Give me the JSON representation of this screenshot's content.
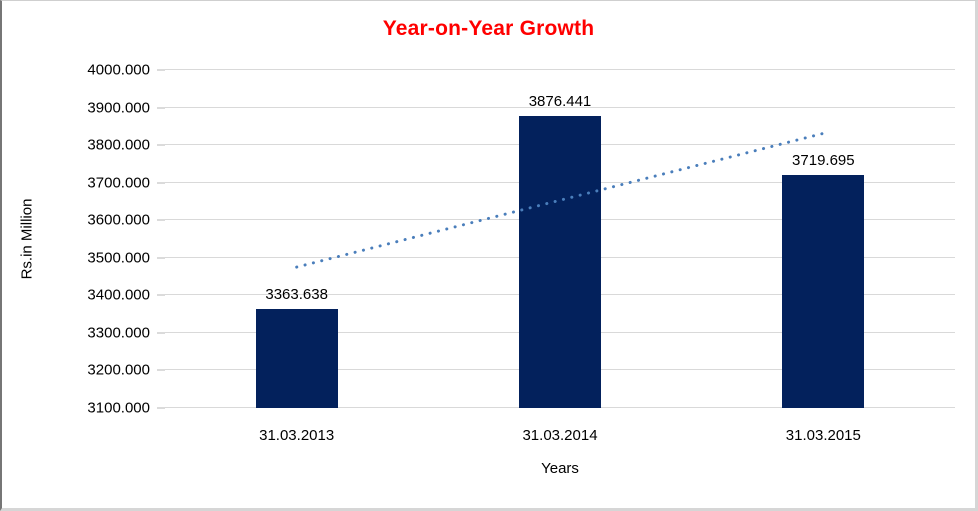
{
  "chart_data": {
    "type": "bar",
    "title": "Year-on-Year Growth",
    "xlabel": "Years",
    "ylabel": "Rs.in Million",
    "categories": [
      "31.03.2013",
      "31.03.2014",
      "31.03.2015"
    ],
    "values": [
      3363.638,
      3876.441,
      3719.695
    ],
    "value_labels": [
      "3363.638",
      "3876.441",
      "3719.695"
    ],
    "ylim": [
      3100,
      4000
    ],
    "ytick_step": 100,
    "ytick_labels": [
      "3100.000",
      "3200.000",
      "3300.000",
      "3400.000",
      "3500.000",
      "3600.000",
      "3700.000",
      "3800.000",
      "3900.000",
      "4000.000"
    ],
    "grid": true,
    "legend": "none",
    "trendline": {
      "type": "linear",
      "style": "dotted",
      "start_value": 3475.2,
      "end_value": 3831.3
    },
    "colors": {
      "title": "#ff0000",
      "bar": "#03215c",
      "gridline": "#d9d9d9",
      "tick": "#b7b7b7",
      "trendline": "#4a7ebb",
      "text": "#000000"
    }
  }
}
